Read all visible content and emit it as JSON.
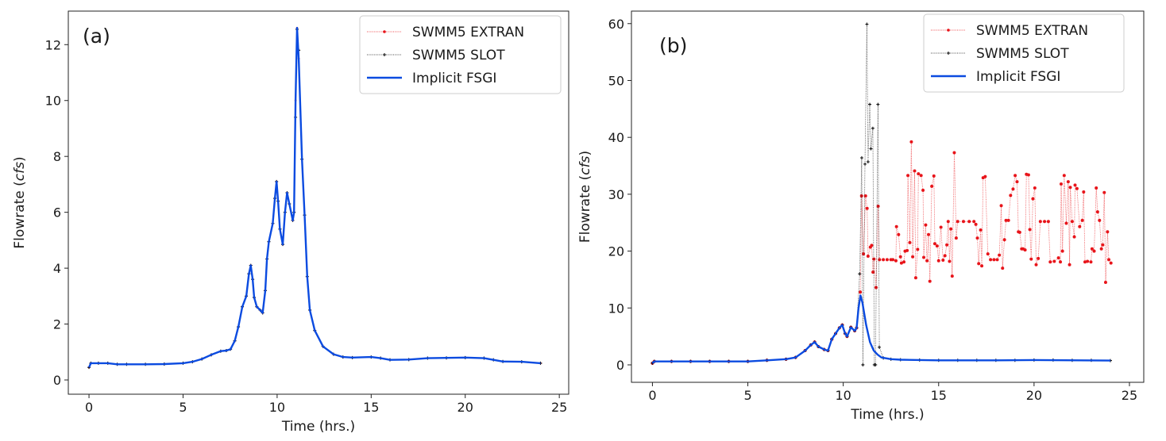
{
  "chart_data": [
    {
      "type": "line",
      "panel_label": "(a)",
      "xlabel": "Time (hrs.)",
      "ylabel": "Flowrate (cfs)",
      "ylabel_prefix": "Flowrate (",
      "ylabel_italic": "cfs",
      "ylabel_suffix": ")",
      "xlim": [
        -1.1,
        25.5
      ],
      "ylim": [
        -0.51,
        13.2
      ],
      "xticks": [
        0,
        5,
        10,
        15,
        20,
        25
      ],
      "yticks": [
        0,
        2,
        4,
        6,
        8,
        10,
        12
      ],
      "grid": false,
      "legend_placement": "top-right",
      "series": [
        {
          "name": "SWMM5 EXTRAN",
          "color": "#e8141a",
          "style": "dotted-marker-dot",
          "x": [
            0,
            0.1,
            0.5,
            1,
            1.5,
            2,
            3,
            4,
            5,
            5.5,
            6,
            6.5,
            7,
            7.3,
            7.52,
            7.75,
            7.94,
            8.15,
            8.36,
            8.5,
            8.6,
            8.7,
            8.78,
            8.92,
            9.1,
            9.23,
            9.37,
            9.46,
            9.56,
            9.77,
            9.88,
            9.97,
            10.05,
            10.15,
            10.3,
            10.42,
            10.53,
            10.65,
            10.83,
            10.9,
            10.98,
            11.06,
            11.15,
            11.32,
            11.46,
            11.6,
            11.74,
            12,
            12.44,
            13,
            13.5,
            14,
            15,
            15.5,
            16,
            17,
            18,
            19,
            20,
            21,
            21.5,
            22,
            23,
            24
          ],
          "y": [
            0.45,
            0.6,
            0.6,
            0.6,
            0.56,
            0.56,
            0.56,
            0.57,
            0.6,
            0.65,
            0.75,
            0.9,
            1.03,
            1.05,
            1.1,
            1.4,
            1.9,
            2.62,
            3.0,
            3.8,
            4.1,
            3.6,
            2.95,
            2.62,
            2.5,
            2.4,
            3.2,
            4.33,
            4.95,
            5.6,
            6.5,
            7.1,
            6.4,
            5.4,
            4.85,
            6.0,
            6.7,
            6.3,
            5.71,
            6.0,
            10.0,
            12.6,
            11.5,
            7.9,
            5.9,
            3.7,
            2.5,
            1.77,
            1.2,
            0.92,
            0.82,
            0.8,
            0.82,
            0.78,
            0.72,
            0.73,
            0.78,
            0.79,
            0.8,
            0.78,
            0.72,
            0.66,
            0.65,
            0.6
          ]
        },
        {
          "name": "SWMM5 SLOT",
          "color": "#111111",
          "style": "dotted-marker-plus",
          "x": [
            0,
            0.1,
            0.5,
            1,
            1.5,
            2,
            3,
            4,
            5,
            5.5,
            6,
            6.5,
            7,
            7.3,
            7.52,
            7.75,
            7.94,
            8.15,
            8.36,
            8.5,
            8.6,
            8.7,
            8.78,
            8.92,
            9.1,
            9.23,
            9.37,
            9.46,
            9.56,
            9.77,
            9.88,
            9.97,
            10.05,
            10.15,
            10.3,
            10.42,
            10.53,
            10.65,
            10.83,
            10.9,
            10.98,
            11.06,
            11.15,
            11.32,
            11.46,
            11.6,
            11.74,
            12,
            12.44,
            13,
            13.5,
            14,
            15,
            15.5,
            16,
            17,
            18,
            19,
            20,
            21,
            21.5,
            22,
            23,
            24
          ],
          "y": [
            0.45,
            0.6,
            0.6,
            0.6,
            0.56,
            0.56,
            0.56,
            0.57,
            0.6,
            0.65,
            0.75,
            0.9,
            1.03,
            1.05,
            1.1,
            1.4,
            1.9,
            2.62,
            3.0,
            3.8,
            4.1,
            3.6,
            2.95,
            2.62,
            2.5,
            2.4,
            3.2,
            4.33,
            4.95,
            5.6,
            6.5,
            7.1,
            6.4,
            5.4,
            4.85,
            6.0,
            6.7,
            6.3,
            5.71,
            6.0,
            9.4,
            12.55,
            11.8,
            7.9,
            5.9,
            3.7,
            2.5,
            1.77,
            1.2,
            0.92,
            0.82,
            0.8,
            0.82,
            0.78,
            0.72,
            0.73,
            0.78,
            0.79,
            0.8,
            0.78,
            0.72,
            0.66,
            0.65,
            0.6
          ]
        },
        {
          "name": "Implicit FSGI",
          "color": "#0b4be0",
          "style": "solid",
          "x": [
            0,
            0.1,
            0.5,
            1,
            1.5,
            2,
            3,
            4,
            5,
            5.5,
            6,
            6.5,
            7,
            7.3,
            7.52,
            7.75,
            7.94,
            8.15,
            8.36,
            8.5,
            8.6,
            8.7,
            8.78,
            8.92,
            9.1,
            9.23,
            9.37,
            9.46,
            9.56,
            9.77,
            9.88,
            9.97,
            10.05,
            10.15,
            10.3,
            10.42,
            10.53,
            10.65,
            10.83,
            10.9,
            10.98,
            11.06,
            11.15,
            11.32,
            11.46,
            11.6,
            11.74,
            12,
            12.44,
            13,
            13.5,
            14,
            15,
            15.5,
            16,
            17,
            18,
            19,
            20,
            21,
            21.5,
            22,
            23,
            24
          ],
          "y": [
            0.45,
            0.6,
            0.6,
            0.6,
            0.56,
            0.56,
            0.56,
            0.57,
            0.6,
            0.65,
            0.75,
            0.9,
            1.03,
            1.05,
            1.1,
            1.4,
            1.9,
            2.62,
            3.0,
            3.8,
            4.1,
            3.6,
            2.95,
            2.62,
            2.5,
            2.4,
            3.2,
            4.33,
            4.95,
            5.6,
            6.5,
            7.1,
            6.4,
            5.4,
            4.85,
            6.0,
            6.7,
            6.3,
            5.71,
            6.0,
            10.0,
            12.6,
            11.5,
            7.9,
            5.9,
            3.7,
            2.5,
            1.77,
            1.2,
            0.92,
            0.82,
            0.8,
            0.82,
            0.78,
            0.72,
            0.73,
            0.78,
            0.79,
            0.8,
            0.78,
            0.72,
            0.66,
            0.65,
            0.6
          ]
        }
      ]
    },
    {
      "type": "line",
      "panel_label": "(b)",
      "xlabel": "Time (hrs.)",
      "ylabel": "Flowrate (cfs)",
      "ylabel_prefix": "Flowrate (",
      "ylabel_italic": "cfs",
      "ylabel_suffix": ")",
      "xlim": [
        -1.1,
        25.75
      ],
      "ylim": [
        -3.07,
        62.2
      ],
      "xticks": [
        0,
        5,
        10,
        15,
        20,
        25
      ],
      "yticks": [
        0,
        10,
        20,
        30,
        40,
        50,
        60
      ],
      "grid": false,
      "legend_placement": "top-right",
      "series": [
        {
          "name": "SWMM5 EXTRAN",
          "color": "#e8141a",
          "style": "dotted-marker-dot",
          "x": [
            0,
            0.1,
            1,
            2,
            3,
            4,
            5,
            6,
            7,
            7.5,
            8,
            8.3,
            8.5,
            8.7,
            9,
            9.2,
            9.4,
            9.6,
            9.8,
            9.95,
            10.1,
            10.2,
            10.4,
            10.6,
            10.7,
            10.89,
            10.96,
            11.06,
            11.17,
            11.25,
            11.3,
            11.42,
            11.49,
            11.56,
            11.61,
            11.72,
            11.83,
            11.9,
            12.1,
            12.3,
            12.5,
            12.6,
            12.76,
            12.79,
            12.9,
            13.0,
            13.05,
            13.18,
            13.24,
            13.35,
            13.39,
            13.49,
            13.57,
            13.64,
            13.74,
            13.8,
            13.9,
            13.94,
            14.08,
            14.18,
            14.22,
            14.32,
            14.39,
            14.47,
            14.54,
            14.64,
            14.75,
            14.8,
            14.92,
            15.0,
            15.12,
            15.23,
            15.33,
            15.43,
            15.5,
            15.57,
            15.64,
            15.71,
            15.82,
            15.92,
            16.0,
            16.3,
            16.6,
            16.85,
            16.95,
            17.03,
            17.1,
            17.2,
            17.26,
            17.33,
            17.44,
            17.58,
            17.72,
            17.9,
            18.07,
            18.18,
            18.28,
            18.35,
            18.45,
            18.53,
            18.66,
            18.77,
            18.9,
            19.01,
            19.11,
            19.18,
            19.25,
            19.35,
            19.42,
            19.53,
            19.6,
            19.71,
            19.78,
            19.85,
            19.94,
            20.04,
            20.11,
            20.22,
            20.33,
            20.55,
            20.75,
            20.85,
            21.06,
            21.28,
            21.38,
            21.42,
            21.49,
            21.58,
            21.69,
            21.79,
            21.86,
            21.9,
            22.0,
            22.11,
            22.15,
            22.25,
            22.39,
            22.53,
            22.6,
            22.67,
            22.8,
            22.98,
            23.04,
            23.15,
            23.26,
            23.33,
            23.43,
            23.53,
            23.6,
            23.68,
            23.75,
            23.85,
            23.92,
            24.03
          ],
          "y": [
            0.3,
            0.6,
            0.6,
            0.6,
            0.6,
            0.6,
            0.6,
            0.8,
            1.0,
            1.3,
            2.5,
            3.5,
            4.0,
            3.2,
            2.7,
            2.5,
            4.5,
            5.5,
            6.5,
            7.0,
            5.5,
            5.0,
            6.6,
            6.0,
            6.5,
            12.8,
            29.7,
            19.5,
            29.7,
            27.5,
            19.1,
            20.7,
            21.0,
            16.3,
            18.6,
            13.6,
            27.9,
            18.5,
            18.5,
            18.5,
            18.5,
            18.5,
            18.3,
            24.3,
            22.9,
            19.0,
            17.9,
            18.1,
            20.0,
            20.1,
            33.3,
            21.5,
            39.2,
            19.0,
            34.1,
            15.3,
            20.3,
            33.6,
            33.3,
            30.7,
            18.9,
            24.6,
            18.3,
            22.9,
            14.7,
            31.4,
            33.2,
            21.3,
            20.9,
            18.3,
            24.2,
            18.4,
            19.2,
            21.1,
            25.2,
            18.2,
            23.9,
            15.6,
            37.3,
            22.3,
            25.2,
            25.2,
            25.2,
            25.2,
            24.7,
            22.3,
            17.8,
            23.7,
            17.4,
            32.9,
            33.1,
            19.5,
            18.5,
            18.5,
            18.5,
            19.3,
            28.0,
            17.0,
            22.0,
            25.4,
            25.4,
            29.8,
            30.9,
            33.3,
            32.2,
            23.4,
            23.3,
            20.4,
            20.4,
            20.2,
            33.5,
            33.4,
            23.8,
            18.6,
            29.2,
            31.1,
            17.6,
            18.7,
            25.2,
            25.2,
            25.2,
            18.1,
            18.2,
            18.8,
            18.1,
            31.8,
            20.0,
            33.3,
            24.9,
            32.2,
            17.6,
            31.2,
            25.2,
            22.5,
            31.6,
            31.0,
            24.3,
            25.4,
            30.4,
            18.1,
            18.2,
            18.1,
            20.4,
            20.0,
            31.1,
            26.9,
            25.4,
            20.4,
            21.1,
            30.3,
            14.5,
            23.4,
            18.5,
            17.9
          ]
        },
        {
          "name": "SWMM5 SLOT",
          "color": "#111111",
          "style": "dotted-marker-plus",
          "x": [
            0,
            0.1,
            1,
            2,
            3,
            4,
            5,
            6,
            7,
            7.5,
            8,
            8.3,
            8.5,
            8.7,
            9,
            9.2,
            9.4,
            9.6,
            9.8,
            9.95,
            10.1,
            10.2,
            10.4,
            10.6,
            10.7,
            10.86,
            10.97,
            11.03,
            11.14,
            11.24,
            11.3,
            11.39,
            11.45,
            11.55,
            11.63,
            11.69,
            11.82,
            11.89,
            12.1,
            12.5,
            13,
            14,
            15,
            16,
            17,
            18,
            19,
            20,
            21,
            22,
            23,
            24
          ],
          "y": [
            0.3,
            0.6,
            0.6,
            0.6,
            0.6,
            0.6,
            0.6,
            0.8,
            1.0,
            1.3,
            2.5,
            3.5,
            4.0,
            3.2,
            2.7,
            2.5,
            4.5,
            5.5,
            6.5,
            7.0,
            5.5,
            5.0,
            6.6,
            6.0,
            6.5,
            16.0,
            36.4,
            0,
            35.3,
            59.9,
            35.7,
            45.8,
            38.0,
            41.6,
            0,
            0,
            45.8,
            3.1,
            1.2,
            1.0,
            0.9,
            0.85,
            0.8,
            0.8,
            0.8,
            0.8,
            0.8,
            0.85,
            0.85,
            0.8,
            0.8,
            0.75
          ]
        },
        {
          "name": "Implicit FSGI",
          "color": "#0b4be0",
          "style": "solid",
          "x": [
            0,
            0.1,
            1,
            2,
            3,
            4,
            5,
            6,
            7,
            7.5,
            8,
            8.3,
            8.5,
            8.7,
            9,
            9.2,
            9.4,
            9.6,
            9.8,
            9.95,
            10.1,
            10.2,
            10.4,
            10.6,
            10.7,
            10.8,
            10.9,
            11.0,
            11.2,
            11.4,
            11.6,
            11.8,
            12,
            12.5,
            13,
            15,
            18,
            20,
            24
          ],
          "y": [
            0.3,
            0.6,
            0.6,
            0.6,
            0.6,
            0.6,
            0.6,
            0.8,
            1.0,
            1.3,
            2.5,
            3.5,
            4.0,
            3.2,
            2.7,
            2.5,
            4.5,
            5.5,
            6.5,
            7.0,
            5.5,
            5.0,
            6.6,
            6.0,
            6.5,
            10.0,
            12.2,
            11.0,
            7.0,
            4.0,
            2.5,
            1.8,
            1.3,
            1.0,
            0.9,
            0.8,
            0.8,
            0.85,
            0.75
          ]
        }
      ]
    }
  ]
}
